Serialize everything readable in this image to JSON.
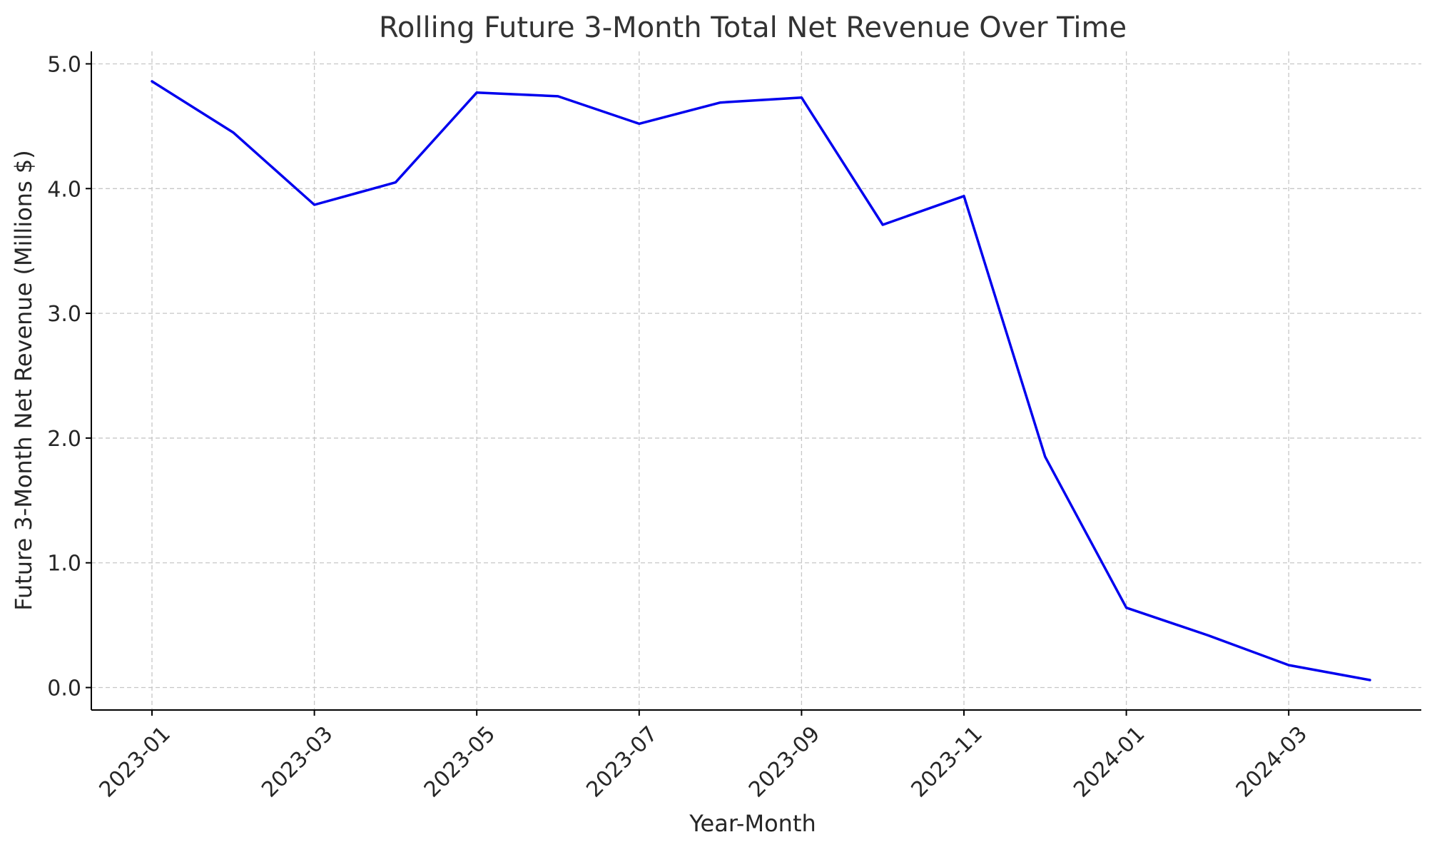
{
  "chart_data": {
    "type": "line",
    "title": "Rolling Future 3-Month Total Net Revenue Over Time",
    "xlabel": "Year-Month",
    "ylabel": "Future 3-Month Net Revenue (Millions $)",
    "x": [
      "2023-01",
      "2023-02",
      "2023-03",
      "2023-04",
      "2023-05",
      "2023-06",
      "2023-07",
      "2023-08",
      "2023-09",
      "2023-10",
      "2023-11",
      "2023-12",
      "2024-01",
      "2024-02",
      "2024-03",
      "2024-04"
    ],
    "x_ticks": [
      "2023-01",
      "2023-03",
      "2023-05",
      "2023-07",
      "2023-09",
      "2023-11",
      "2024-01",
      "2024-03"
    ],
    "y_ticks": [
      "0.0",
      "1.0",
      "2.0",
      "3.0",
      "4.0",
      "5.0"
    ],
    "ylim": [
      -0.18,
      5.1
    ],
    "grid": true,
    "series": [
      {
        "color": "#0000ee",
        "values": [
          4.86,
          4.45,
          3.87,
          4.05,
          4.77,
          4.74,
          4.52,
          4.69,
          4.73,
          3.71,
          3.94,
          1.85,
          0.64,
          0.42,
          0.18,
          0.06
        ]
      }
    ]
  }
}
